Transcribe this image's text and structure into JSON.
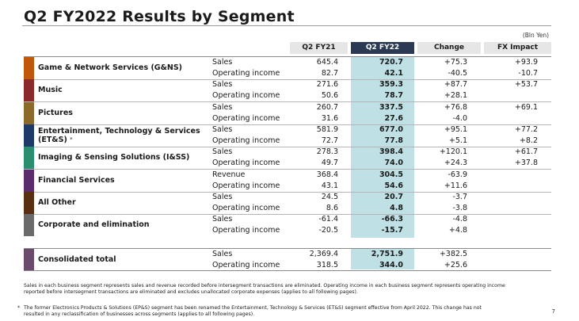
{
  "title": "Q2 FY2022 Results by Segment",
  "unit": "(Bln Yen)",
  "columns": {
    "q21": "Q2 FY21",
    "q22": "Q2 FY22",
    "change": "Change",
    "fx": "FX Impact"
  },
  "segments": [
    {
      "name": "Game & Network Services (G&NS)",
      "color": "#c0580c",
      "rows": [
        {
          "label": "Sales",
          "q21": "645.4",
          "q22": "720.7",
          "change": "+75.3",
          "fx": "+93.9"
        },
        {
          "label": "Operating income",
          "q21": "82.7",
          "q22": "42.1",
          "change": "-40.5",
          "fx": "-10.7"
        }
      ]
    },
    {
      "name": "Music",
      "color": "#8a2a2a",
      "rows": [
        {
          "label": "Sales",
          "q21": "271.6",
          "q22": "359.3",
          "change": "+87.7",
          "fx": "+53.7"
        },
        {
          "label": "Operating income",
          "q21": "50.6",
          "q22": "78.7",
          "change": "+28.1",
          "fx": ""
        }
      ]
    },
    {
      "name": "Pictures",
      "color": "#8c6a2a",
      "rows": [
        {
          "label": "Sales",
          "q21": "260.7",
          "q22": "337.5",
          "change": "+76.8",
          "fx": "+69.1"
        },
        {
          "label": "Operating income",
          "q21": "31.6",
          "q22": "27.6",
          "change": "-4.0",
          "fx": ""
        }
      ]
    },
    {
      "name": "Entertainment, Technology & Services (ET&S)",
      "star": "*",
      "color": "#1d3a6b",
      "rows": [
        {
          "label": "Sales",
          "q21": "581.9",
          "q22": "677.0",
          "change": "+95.1",
          "fx": "+77.2"
        },
        {
          "label": "Operating income",
          "q21": "72.7",
          "q22": "77.8",
          "change": "+5.1",
          "fx": "+8.2"
        }
      ]
    },
    {
      "name": "Imaging & Sensing Solutions (I&SS)",
      "color": "#2a8f6e",
      "rows": [
        {
          "label": "Sales",
          "q21": "278.3",
          "q22": "398.4",
          "change": "+120.1",
          "fx": "+61.7"
        },
        {
          "label": "Operating income",
          "q21": "49.7",
          "q22": "74.0",
          "change": "+24.3",
          "fx": "+37.8"
        }
      ]
    },
    {
      "name": "Financial Services",
      "color": "#5a2c6e",
      "rows": [
        {
          "label": "Revenue",
          "q21": "368.4",
          "q22": "304.5",
          "change": "-63.9",
          "fx": ""
        },
        {
          "label": "Operating income",
          "q21": "43.1",
          "q22": "54.6",
          "change": "+11.6",
          "fx": ""
        }
      ]
    },
    {
      "name": "All Other",
      "color": "#5a2e10",
      "rows": [
        {
          "label": "Sales",
          "q21": "24.5",
          "q22": "20.7",
          "change": "-3.7",
          "fx": ""
        },
        {
          "label": "Operating income",
          "q21": "8.6",
          "q22": "4.8",
          "change": "-3.8",
          "fx": ""
        }
      ]
    },
    {
      "name": "Corporate and elimination",
      "color": "#6a6a6a",
      "rows": [
        {
          "label": "Sales",
          "q21": "-61.4",
          "q22": "-66.3",
          "change": "-4.8",
          "fx": ""
        },
        {
          "label": "Operating income",
          "q21": "-20.5",
          "q22": "-15.7",
          "change": "+4.8",
          "fx": ""
        }
      ]
    }
  ],
  "consolidated": {
    "name": "Consolidated total",
    "color": "#6b4a6b",
    "rows": [
      {
        "label": "Sales",
        "q21": "2,369.4",
        "q22": "2,751.9",
        "change": "+382.5",
        "fx": ""
      },
      {
        "label": "Operating income",
        "q21": "318.5",
        "q22": "344.0",
        "change": "+25.6",
        "fx": ""
      }
    ]
  },
  "notes": {
    "note1_line1": "Sales in each business segment represents sales and revenue recorded before intersegment transactions are eliminated. Operating income in each business segment represents operating income",
    "note1_line2": "reported before intersegment transactions are eliminated and excludes unallocated corporate expenses (applies to all following pages).",
    "note2_mark": "*",
    "note2_line1": "The former Electronics Products & Solutions (EP&S) segment has been renamed the Entertainment, Technology & Services (ET&S) segment effective from April 2022. This change has not",
    "note2_line2": "resulted in any reclassification of businesses across segments (applies to all following pages)."
  },
  "page_number": "7"
}
